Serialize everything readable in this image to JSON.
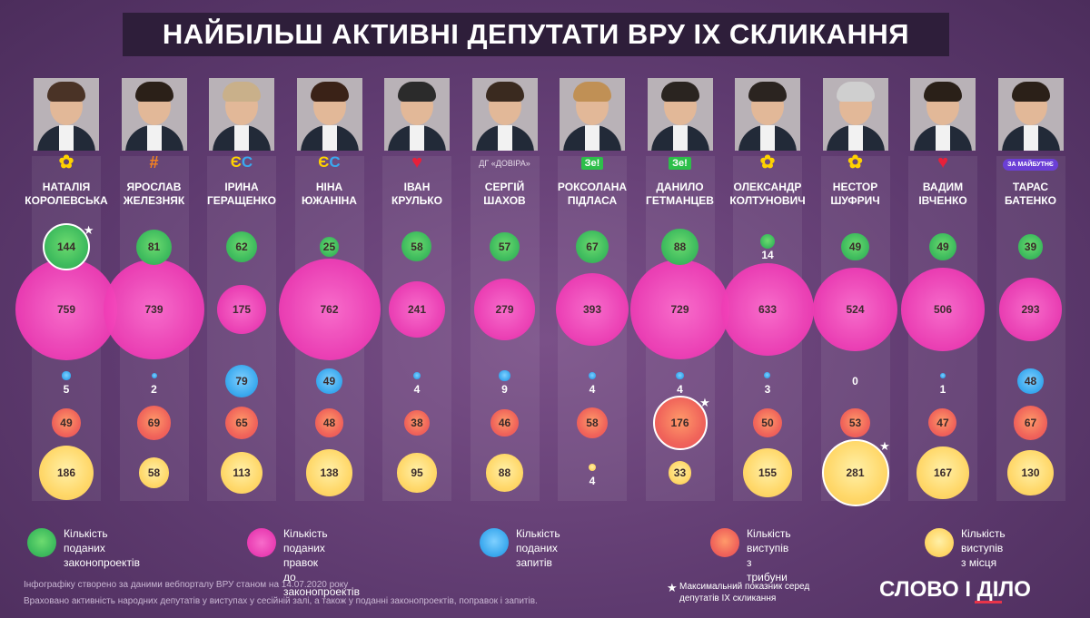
{
  "title": "НАЙБІЛЬШ АКТИВНІ ДЕПУТАТИ ВРУ ІХ СКЛИКАННЯ",
  "colors": {
    "green": "#3fbc5e",
    "pink": "#f13fb7",
    "blue": "#3aa8ee",
    "red": "#f0645a",
    "yellow": "#ffd86a"
  },
  "chart_data": {
    "type": "bubble",
    "metrics": [
      {
        "key": "bills",
        "label": "Кількість поданих законопроектів"
      },
      {
        "key": "amendments",
        "label": "Кількість поданих правок до законопроектів"
      },
      {
        "key": "requests",
        "label": "Кількість поданих запитів"
      },
      {
        "key": "tribune",
        "label": "Кількість виступів з трибуни"
      },
      {
        "key": "seat",
        "label": "Кількість виступів з місця"
      }
    ],
    "deputies": [
      {
        "first": "НАТАЛІЯ",
        "last": "КОРОЛЕВСЬКА",
        "party_icon": "opposition-bloc-icon",
        "party_text": "",
        "bills": 144,
        "amendments": 759,
        "requests": 5,
        "tribune": 49,
        "seat": 186
      },
      {
        "first": "ЯРОСЛАВ",
        "last": "ЖЕЛЕЗНЯК",
        "party_icon": "golos-icon",
        "party_text": "",
        "bills": 81,
        "amendments": 739,
        "requests": 2,
        "tribune": 69,
        "seat": 58
      },
      {
        "first": "ІРИНА",
        "last": "ГЕРАЩЕНКО",
        "party_icon": "es-icon",
        "party_text": "",
        "bills": 62,
        "amendments": 175,
        "requests": 79,
        "tribune": 65,
        "seat": 113
      },
      {
        "first": "НІНА",
        "last": "ЮЖАНІНА",
        "party_icon": "es-icon",
        "party_text": "",
        "bills": 25,
        "amendments": 762,
        "requests": 49,
        "tribune": 48,
        "seat": 138
      },
      {
        "first": "ІВАН",
        "last": "КРУЛЬКО",
        "party_icon": "batkivshchyna-heart-icon",
        "party_text": "",
        "bills": 58,
        "amendments": 241,
        "requests": 4,
        "tribune": 38,
        "seat": 95
      },
      {
        "first": "СЕРГІЙ",
        "last": "ШАХОВ",
        "party_icon": "",
        "party_text": "ДГ «ДОВІРА»",
        "bills": 57,
        "amendments": 279,
        "requests": 9,
        "tribune": 46,
        "seat": 88
      },
      {
        "first": "РОКСОЛАНА",
        "last": "ПІДЛАСА",
        "party_icon": "ze-icon",
        "party_text": "Зе!",
        "bills": 67,
        "amendments": 393,
        "requests": 4,
        "tribune": 58,
        "seat": 4
      },
      {
        "first": "ДАНИЛО",
        "last": "ГЕТМАНЦЕВ",
        "party_icon": "ze-icon",
        "party_text": "Зе!",
        "bills": 88,
        "amendments": 729,
        "requests": 4,
        "tribune": 176,
        "seat": 33
      },
      {
        "first": "ОЛЕКСАНДР",
        "last": "КОЛТУНОВИЧ",
        "party_icon": "opposition-bloc-icon",
        "party_text": "",
        "bills": 14,
        "amendments": 633,
        "requests": 3,
        "tribune": 50,
        "seat": 155
      },
      {
        "first": "НЕСТОР",
        "last": "ШУФРИЧ",
        "party_icon": "opposition-bloc-icon",
        "party_text": "",
        "bills": 49,
        "amendments": 524,
        "requests": 0,
        "tribune": 53,
        "seat": 281
      },
      {
        "first": "ВАДИМ",
        "last": "ІВЧЕНКО",
        "party_icon": "batkivshchyna-heart-icon",
        "party_text": "",
        "bills": 49,
        "amendments": 506,
        "requests": 1,
        "tribune": 47,
        "seat": 167
      },
      {
        "first": "ТАРАС",
        "last": "БАТЕНКО",
        "party_icon": "za-maibutnie-icon",
        "party_text": "ЗА МАЙБУТНЄ",
        "bills": 39,
        "amendments": 293,
        "requests": 48,
        "tribune": 67,
        "seat": 130
      }
    ],
    "max_markers": [
      {
        "deputy": 0,
        "metric": "bills"
      },
      {
        "deputy": 7,
        "metric": "tribune"
      },
      {
        "deputy": 9,
        "metric": "seat"
      }
    ]
  },
  "legend": [
    {
      "line1": "Кількість поданих",
      "line2": "законопроектів"
    },
    {
      "line1": "Кількість поданих правок",
      "line2": "до законопроектів"
    },
    {
      "line1": "Кількість поданих",
      "line2": "запитів"
    },
    {
      "line1": "Кількість виступів",
      "line2": "з трибуни"
    },
    {
      "line1": "Кількість виступів",
      "line2": "з місця"
    }
  ],
  "footnote1": "Інфографіку створено за даними вебпорталу ВРУ станом на 14.07.2020 року",
  "footnote2": "Враховано активність народних депутатів у виступах у сесійній залі, а також у поданні законопроектів, поправок і запитів.",
  "max_note_line1": "Максимальний показник серед",
  "max_note_line2": "депутатів IX скликання",
  "logo_text": "СЛОВО І ДІЛО"
}
